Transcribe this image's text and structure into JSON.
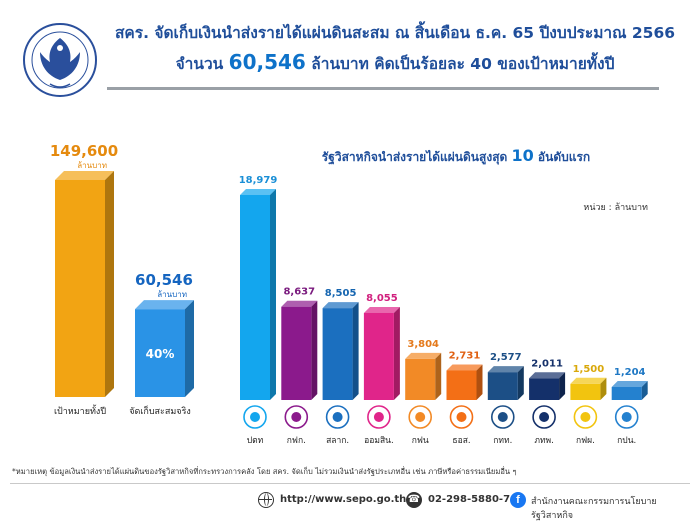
{
  "header": {
    "title_line1": "สคร. จัดเก็บเงินนำส่งรายได้แผ่นดินสะสม ณ สิ้นเดือน ธ.ค. 65 ปีงบประมาณ 2566",
    "title_line2_prefix": "จำนวน",
    "title_line2_amount": "60,546",
    "title_line2_suffix": "ล้านบาท คิดเป็นร้อยละ 40 ของเป้าหมายทั้งปี"
  },
  "chart_data": [
    {
      "type": "bar",
      "categories": [
        "เป้าหมายทั้งปี",
        "จัดเก็บสะสมจริง"
      ],
      "values": [
        149600,
        60546
      ],
      "value_labels": [
        "149,600",
        "60,546"
      ],
      "unit_label": "ล้านบาท",
      "percent_label": "40%",
      "colors": [
        "#f2a413",
        "#2a93e6"
      ],
      "label_colors": [
        "#e58a0e",
        "#1565c0"
      ]
    },
    {
      "type": "bar",
      "title_prefix": "รัฐวิสาหกิจนำส่งรายได้แผ่นดินสูงสุด",
      "title_number": "10",
      "title_suffix": "อันดับแรก",
      "unit_note": "หน่วย : ล้านบาท",
      "categories": [
        "ปตท",
        "กฟก.",
        "สลาก.",
        "ออมสิน.",
        "กฟน",
        "ธอส.",
        "กทท.",
        "ภทพ.",
        "กฟผ.",
        "กปน."
      ],
      "values": [
        18979,
        8637,
        8505,
        8055,
        3804,
        2731,
        2577,
        2011,
        1500,
        1204
      ],
      "value_labels": [
        "18,979",
        "8,637",
        "8,505",
        "8,055",
        "3,804",
        "2,731",
        "2,577",
        "2,011",
        "1,500",
        "1,204"
      ],
      "colors": [
        "#13a6ee",
        "#8b1a8c",
        "#1b6fbf",
        "#e0258a",
        "#f28a26",
        "#f36f16",
        "#1c4f86",
        "#14306a",
        "#f2c40f",
        "#2481cf"
      ],
      "label_colors": [
        "#1a8fd6",
        "#7a1a7e",
        "#1565b0",
        "#d1207e",
        "#e4791b",
        "#e06012",
        "#1c4f86",
        "#14306a",
        "#d9a80a",
        "#1f78c4"
      ],
      "icon_names": [
        "ptt-logo-icon",
        "fio-logo-icon",
        "glo-logo-icon",
        "gsb-logo-icon",
        "mea-logo-icon",
        "ghb-logo-icon",
        "port-logo-icon",
        "aot-logo-icon",
        "egat-logo-icon",
        "mwa-logo-icon"
      ]
    }
  ],
  "footer": {
    "note": "*หมายเหตุ ข้อมูลเงินนำส่งรายได้แผ่นดินของรัฐวิสาหกิจที่กระทรวงการคลัง โดย สคร. จัดเก็บ ไม่รวมเงินนำส่งรัฐประเภทอื่น เช่น ภาษีหรือค่าธรรมเนียมอื่น ๆ",
    "website": "http://www.sepo.go.th",
    "phone": "02-298-5880-7",
    "phone_icon": "☎",
    "facebook_icon": "f",
    "facebook_page": "สำนักงานคณะกรรมการนโยบายรัฐวิสาหกิจ"
  }
}
